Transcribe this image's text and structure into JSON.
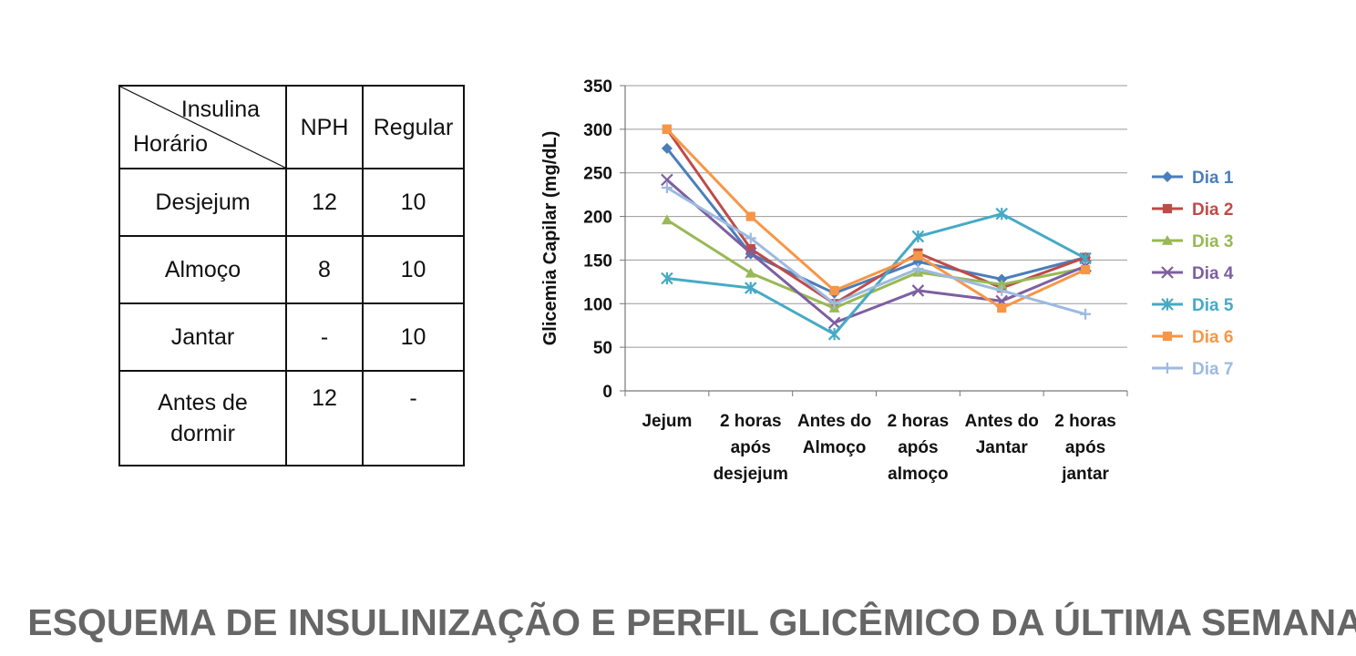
{
  "table": {
    "header": {
      "insulina": "Insulina",
      "horario": "Horário",
      "nph": "NPH",
      "regular": "Regular"
    },
    "rows": [
      {
        "horario": [
          "Desjejum"
        ],
        "nph": "12",
        "regular": "10"
      },
      {
        "horario": [
          "Almoço"
        ],
        "nph": "8",
        "regular": "10"
      },
      {
        "horario": [
          "Jantar"
        ],
        "nph": "-",
        "regular": "10"
      },
      {
        "horario": [
          "Antes de",
          "dormir"
        ],
        "nph": "12",
        "regular": "-"
      }
    ]
  },
  "chart_data": {
    "type": "line",
    "title": "",
    "xlabel": "",
    "ylabel": "Glicemia Capilar (mg/dL)",
    "ylim": [
      0,
      350
    ],
    "yticks": [
      0,
      50,
      100,
      150,
      200,
      250,
      300,
      350
    ],
    "grid": true,
    "legend": "right",
    "categories": [
      [
        "Jejum"
      ],
      [
        "2 horas",
        "após",
        "desjejum"
      ],
      [
        "Antes do",
        "Almoço"
      ],
      [
        "2 horas",
        "após",
        "almoço"
      ],
      [
        "Antes do",
        "Jantar"
      ],
      [
        "2 horas",
        "após",
        "jantar"
      ]
    ],
    "series": [
      {
        "name": "Dia 1",
        "color": "#4a7ebb",
        "marker": "diamond",
        "values": [
          278,
          157,
          112,
          148,
          128,
          153
        ]
      },
      {
        "name": "Dia 2",
        "color": "#be4b48",
        "marker": "square",
        "values": [
          300,
          163,
          100,
          158,
          118,
          153
        ]
      },
      {
        "name": "Dia 3",
        "color": "#98b954",
        "marker": "triangle",
        "values": [
          196,
          135,
          95,
          136,
          122,
          141
        ]
      },
      {
        "name": "Dia 4",
        "color": "#7d5fa0",
        "marker": "x",
        "values": [
          242,
          158,
          78,
          115,
          103,
          143
        ]
      },
      {
        "name": "Dia 5",
        "color": "#46aac5",
        "marker": "star",
        "values": [
          129,
          118,
          65,
          177,
          203,
          152
        ]
      },
      {
        "name": "Dia 6",
        "color": "#f79646",
        "marker": "square",
        "values": [
          300,
          200,
          115,
          155,
          95,
          139
        ]
      },
      {
        "name": "Dia 7",
        "color": "#9dbae0",
        "marker": "plus",
        "values": [
          233,
          175,
          100,
          140,
          115,
          88
        ]
      }
    ]
  },
  "footer": {
    "title": "ESQUEMA DE INSULINIZAÇÃO E PERFIL GLICÊMICO DA ÚLTIMA SEMANA"
  }
}
